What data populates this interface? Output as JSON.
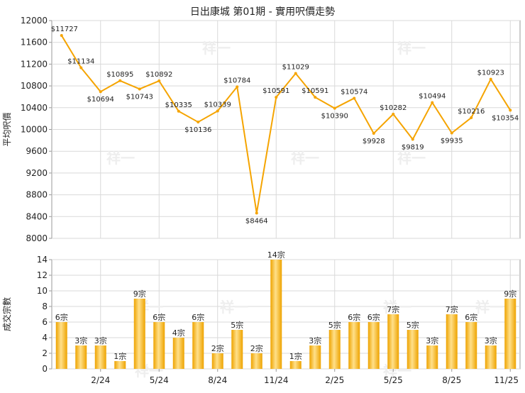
{
  "title": "日出康城 第01期 - 實用呎價走勢",
  "watermark": "祥一",
  "colors": {
    "line": "#f5a400",
    "bar_light": "#ffe08a",
    "bar_dark": "#eea300",
    "grid": "#d9d9d9",
    "axis": "#999999",
    "text": "#222222"
  },
  "chart_data": [
    {
      "type": "line",
      "ylabel": "平均呎價",
      "ylim": [
        8000,
        12000
      ],
      "yticks": [
        8000,
        8400,
        8800,
        9200,
        9600,
        10000,
        10400,
        10800,
        11200,
        11600,
        12000
      ],
      "grid": true,
      "values": [
        11727,
        11134,
        10694,
        10895,
        10743,
        10892,
        10335,
        10136,
        10339,
        10784,
        8464,
        10591,
        11029,
        10591,
        10390,
        10574,
        9928,
        10282,
        9819,
        10494,
        9935,
        10216,
        10923,
        10354
      ],
      "data_labels": [
        "$11727",
        "$11134",
        "$10694",
        "$10895",
        "$10743",
        "$10892",
        "$10335",
        "$10136",
        "$10339",
        "$10784",
        "$8464",
        "$10591",
        "$11029",
        "$10591",
        "$10390",
        "$10574",
        "$9928",
        "$10282",
        "$9819",
        "$10494",
        "$9935",
        "$10216",
        "$10923",
        "$10354"
      ]
    },
    {
      "type": "bar",
      "ylabel": "成交宗數",
      "ylim": [
        0,
        14
      ],
      "yticks": [
        0,
        2,
        4,
        6,
        8,
        10,
        12,
        14
      ],
      "grid": true,
      "values": [
        6,
        3,
        3,
        1,
        9,
        6,
        4,
        6,
        2,
        5,
        2,
        14,
        1,
        3,
        5,
        6,
        6,
        7,
        5,
        3,
        7,
        6,
        3,
        9
      ],
      "data_labels": [
        "6宗",
        "3宗",
        "3宗",
        "1宗",
        "9宗",
        "6宗",
        "4宗",
        "6宗",
        "2宗",
        "5宗",
        "2宗",
        "14宗",
        "1宗",
        "3宗",
        "5宗",
        "6宗",
        "6宗",
        "7宗",
        "5宗",
        "3宗",
        "7宗",
        "6宗",
        "3宗",
        "9宗"
      ],
      "xtick_labels": [
        {
          "index": 2,
          "label": "2/24"
        },
        {
          "index": 5,
          "label": "5/24"
        },
        {
          "index": 8,
          "label": "8/24"
        },
        {
          "index": 11,
          "label": "11/24"
        },
        {
          "index": 14,
          "label": "2/25"
        },
        {
          "index": 17,
          "label": "5/25"
        },
        {
          "index": 20,
          "label": "8/25"
        },
        {
          "index": 23,
          "label": "11/25"
        }
      ]
    }
  ]
}
